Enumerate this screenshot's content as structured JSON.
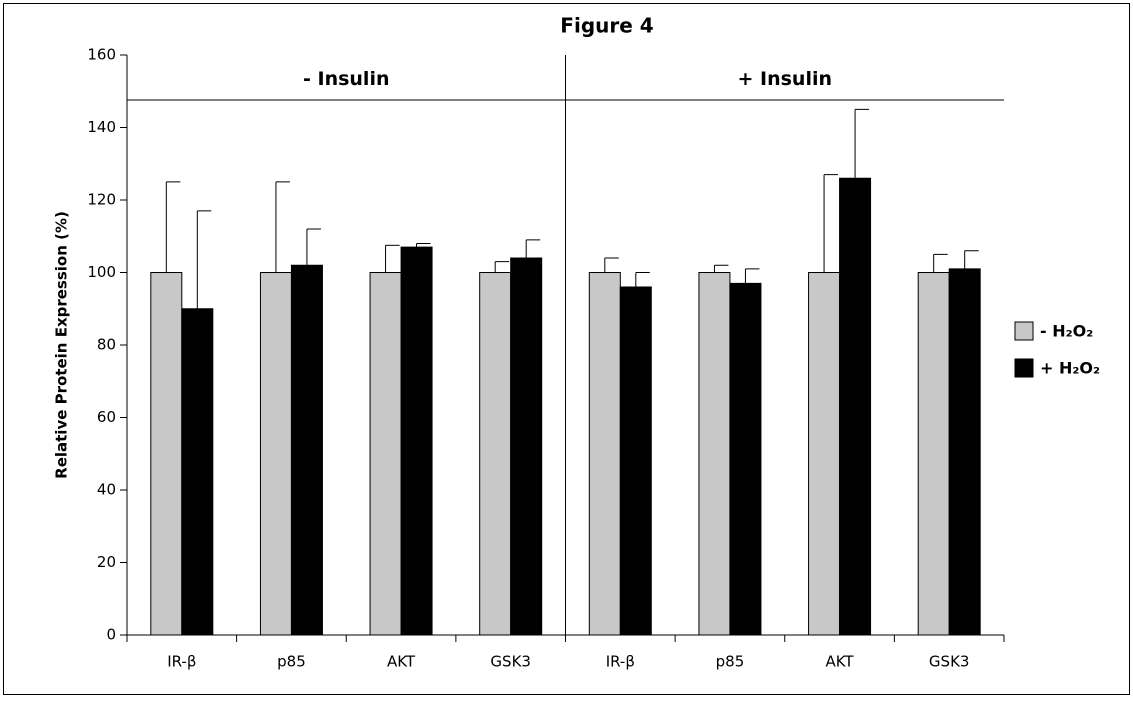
{
  "chart_data": {
    "type": "bar",
    "title": "Figure 4",
    "y_label": "Relative Protein Expression (%)",
    "groups": [
      "- Insulin",
      "+ Insulin"
    ],
    "categories": [
      "IR-β",
      "p85",
      "AKT",
      "GSK3",
      "IR-β",
      "p85",
      "AKT",
      "GSK3"
    ],
    "series": [
      {
        "name": "- H₂O₂",
        "color": "#c8c8c8",
        "values": [
          100,
          100,
          100,
          100,
          100,
          100,
          100,
          100
        ],
        "errors": [
          25,
          25,
          7.5,
          3,
          4,
          2,
          27,
          5
        ]
      },
      {
        "name": "+ H₂O₂",
        "color": "#000000",
        "values": [
          90,
          102,
          107,
          104,
          96,
          97,
          126,
          101
        ],
        "errors": [
          27,
          10,
          1,
          5,
          4,
          4,
          19,
          5
        ]
      }
    ],
    "ylim": [
      0,
      160
    ],
    "yticks": [
      0,
      20,
      40,
      60,
      80,
      100,
      120,
      140,
      160
    ],
    "legend": "right"
  }
}
